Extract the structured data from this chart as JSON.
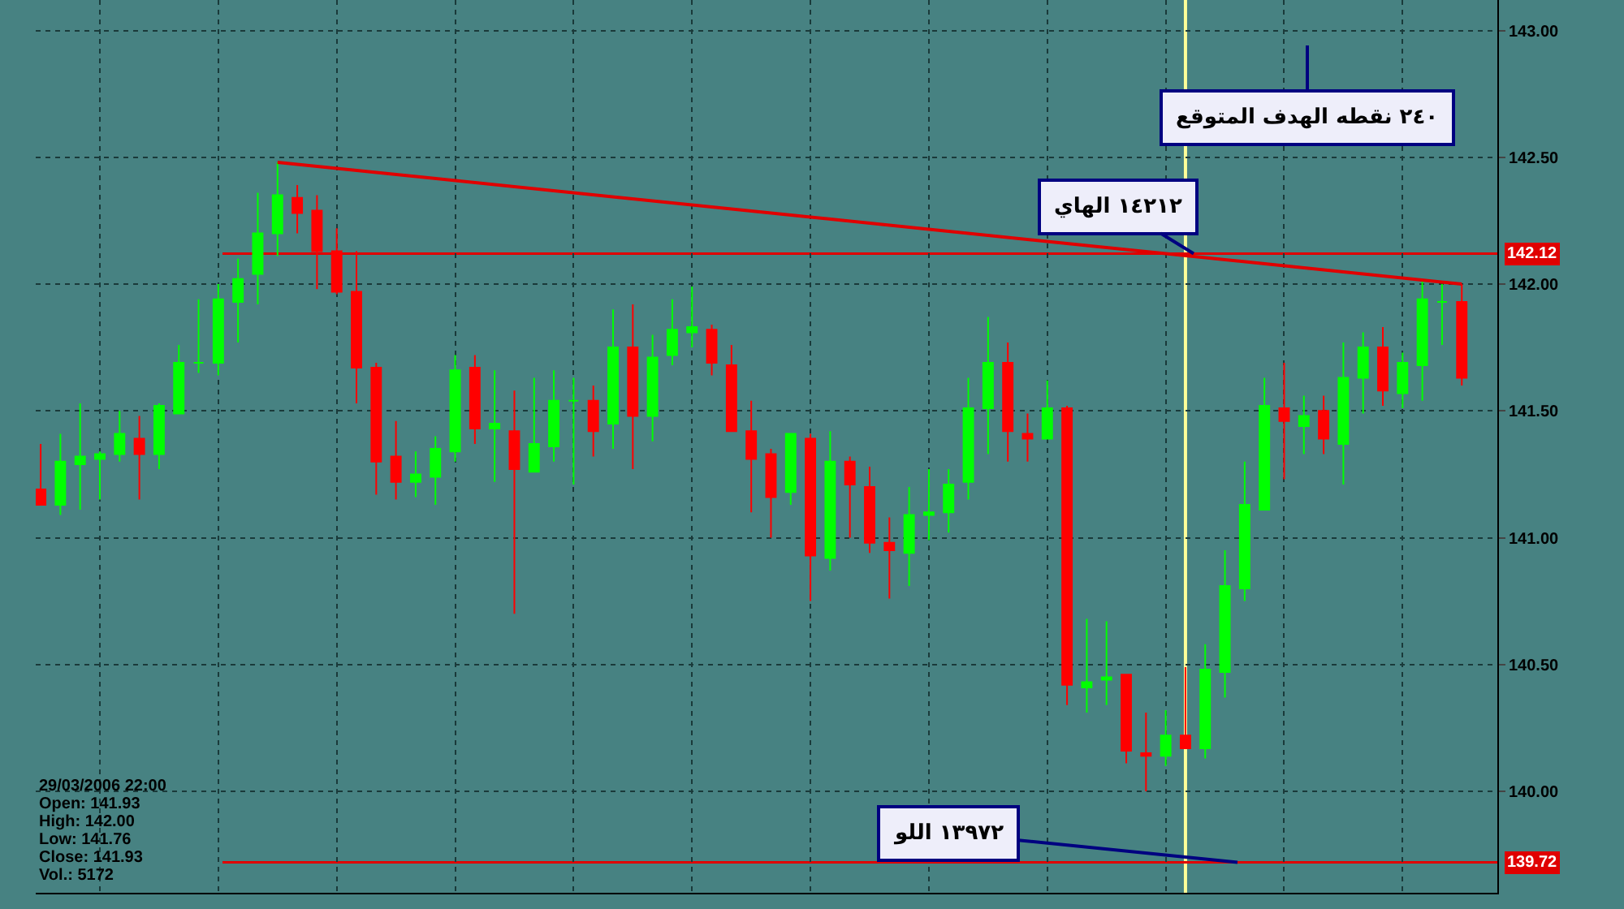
{
  "chart_data": {
    "type": "candlestick",
    "categories": [
      null,
      null,
      null,
      null,
      null,
      null,
      null,
      null,
      null,
      null,
      null,
      null,
      null,
      null,
      null,
      null,
      null,
      null,
      null,
      null,
      null,
      null,
      null,
      null,
      null,
      null,
      null,
      null,
      null,
      null,
      null,
      null,
      null,
      null,
      null,
      null,
      null,
      null,
      null,
      null,
      null,
      null,
      null,
      null,
      null,
      null,
      null,
      null,
      null,
      null,
      null,
      null,
      null,
      null,
      null,
      null,
      null,
      null,
      null,
      null,
      null,
      null,
      null,
      null,
      null,
      null,
      null,
      null,
      null,
      null,
      null,
      null,
      null
    ],
    "ohlc": [
      [
        141.19,
        141.37,
        141.13,
        141.13
      ],
      [
        141.13,
        141.41,
        141.09,
        141.3
      ],
      [
        141.29,
        141.53,
        141.11,
        141.32
      ],
      [
        141.31,
        141.34,
        141.15,
        141.33
      ],
      [
        141.33,
        141.5,
        141.3,
        141.41
      ],
      [
        141.39,
        141.48,
        141.15,
        141.33
      ],
      [
        141.33,
        141.53,
        141.27,
        141.52
      ],
      [
        141.49,
        141.76,
        141.49,
        141.69
      ],
      [
        141.69,
        141.94,
        141.65,
        141.69
      ],
      [
        141.69,
        142.0,
        141.64,
        141.94
      ],
      [
        141.93,
        142.1,
        141.77,
        142.02
      ],
      [
        142.04,
        142.36,
        141.92,
        142.2
      ],
      [
        142.2,
        142.48,
        142.11,
        142.35
      ],
      [
        142.34,
        142.39,
        142.2,
        142.28
      ],
      [
        142.29,
        142.35,
        141.98,
        142.13
      ],
      [
        142.13,
        142.22,
        141.96,
        141.97
      ],
      [
        141.97,
        142.13,
        141.53,
        141.67
      ],
      [
        141.67,
        141.69,
        141.17,
        141.3
      ],
      [
        141.32,
        141.46,
        141.15,
        141.22
      ],
      [
        141.22,
        141.34,
        141.16,
        141.25
      ],
      [
        141.24,
        141.4,
        141.13,
        141.35
      ],
      [
        141.34,
        141.72,
        141.3,
        141.66
      ],
      [
        141.67,
        141.72,
        141.37,
        141.43
      ],
      [
        141.43,
        141.66,
        141.22,
        141.45
      ],
      [
        141.42,
        141.58,
        140.7,
        141.27
      ],
      [
        141.26,
        141.63,
        141.26,
        141.37
      ],
      [
        141.36,
        141.66,
        141.3,
        141.54
      ],
      [
        141.54,
        141.63,
        141.21,
        141.54
      ],
      [
        141.54,
        141.6,
        141.32,
        141.42
      ],
      [
        141.45,
        141.9,
        141.35,
        141.75
      ],
      [
        141.75,
        141.92,
        141.27,
        141.48
      ],
      [
        141.48,
        141.8,
        141.38,
        141.71
      ],
      [
        141.72,
        141.94,
        141.68,
        141.82
      ],
      [
        141.81,
        141.99,
        141.75,
        141.83
      ],
      [
        141.82,
        141.84,
        141.64,
        141.69
      ],
      [
        141.68,
        141.76,
        141.42,
        141.42
      ],
      [
        141.42,
        141.54,
        141.1,
        141.31
      ],
      [
        141.33,
        141.35,
        141.0,
        141.16
      ],
      [
        141.18,
        141.41,
        141.13,
        141.41
      ],
      [
        141.39,
        141.41,
        140.75,
        140.93
      ],
      [
        140.92,
        141.42,
        140.87,
        141.3
      ],
      [
        141.3,
        141.32,
        141.0,
        141.21
      ],
      [
        141.2,
        141.28,
        140.94,
        140.98
      ],
      [
        140.98,
        141.08,
        140.76,
        140.95
      ],
      [
        140.94,
        141.2,
        140.81,
        141.09
      ],
      [
        141.09,
        141.27,
        140.99,
        141.1
      ],
      [
        141.1,
        141.27,
        141.02,
        141.21
      ],
      [
        141.22,
        141.63,
        141.15,
        141.51
      ],
      [
        141.51,
        141.87,
        141.33,
        141.69
      ],
      [
        141.69,
        141.77,
        141.3,
        141.42
      ],
      [
        141.41,
        141.49,
        141.3,
        141.39
      ],
      [
        141.39,
        141.62,
        141.39,
        141.51
      ],
      [
        141.51,
        141.52,
        140.34,
        140.42
      ],
      [
        140.41,
        140.68,
        140.31,
        140.43
      ],
      [
        140.44,
        140.67,
        140.34,
        140.45
      ],
      [
        140.46,
        140.46,
        140.11,
        140.16
      ],
      [
        140.15,
        140.31,
        140.0,
        140.14
      ],
      [
        140.14,
        140.32,
        140.1,
        140.22
      ],
      [
        140.22,
        140.49,
        140.17,
        140.17
      ],
      [
        140.17,
        140.58,
        140.13,
        140.48
      ],
      [
        140.47,
        140.95,
        140.37,
        140.81
      ],
      [
        140.8,
        141.3,
        140.75,
        141.13
      ],
      [
        141.11,
        141.63,
        141.11,
        141.52
      ],
      [
        141.51,
        141.69,
        141.23,
        141.46
      ],
      [
        141.44,
        141.56,
        141.33,
        141.48
      ],
      [
        141.5,
        141.56,
        141.33,
        141.39
      ],
      [
        141.37,
        141.77,
        141.21,
        141.63
      ],
      [
        141.63,
        141.81,
        141.49,
        141.75
      ],
      [
        141.75,
        141.83,
        141.52,
        141.58
      ],
      [
        141.57,
        141.73,
        141.51,
        141.69
      ],
      [
        141.68,
        142.01,
        141.54,
        141.94
      ],
      [
        141.93,
        142.0,
        141.76,
        141.93
      ],
      [
        141.93,
        142.0,
        141.6,
        141.63
      ]
    ],
    "colors": [
      "#ff0000",
      "#00ff00",
      "#00ff00",
      "#00ff00",
      "#00ff00",
      "#ff0000",
      "#00ff00",
      "#00ff00",
      "#00ff00",
      "#00ff00",
      "#00ff00",
      "#00ff00",
      "#00ff00",
      "#ff0000",
      "#ff0000",
      "#ff0000",
      "#ff0000",
      "#ff0000",
      "#ff0000",
      "#00ff00",
      "#00ff00",
      "#00ff00",
      "#ff0000",
      "#00ff00",
      "#ff0000",
      "#00ff00",
      "#00ff00",
      "#00ff00",
      "#ff0000",
      "#00ff00",
      "#ff0000",
      "#00ff00",
      "#00ff00",
      "#00ff00",
      "#ff0000",
      "#ff0000",
      "#ff0000",
      "#ff0000",
      "#00ff00",
      "#ff0000",
      "#00ff00",
      "#ff0000",
      "#ff0000",
      "#ff0000",
      "#00ff00",
      "#00ff00",
      "#00ff00",
      "#00ff00",
      "#00ff00",
      "#ff0000",
      "#ff0000",
      "#00ff00",
      "#ff0000",
      "#00ff00",
      "#00ff00",
      "#ff0000",
      "#ff0000",
      "#00ff00",
      "#ff0000",
      "#00ff00",
      "#00ff00",
      "#00ff00",
      "#00ff00",
      "#ff0000",
      "#00ff00",
      "#ff0000",
      "#00ff00",
      "#00ff00",
      "#ff0000",
      "#00ff00",
      "#00ff00",
      "#00ff00",
      "#ff0000"
    ],
    "series": [
      {
        "type": "line",
        "color": "#e00000",
        "values": [
          null,
          null,
          null,
          null,
          null,
          null,
          null,
          null,
          null,
          null,
          null,
          null,
          142.48,
          null,
          null,
          null,
          null,
          null,
          null,
          null,
          null,
          null,
          null,
          null,
          null,
          null,
          null,
          null,
          null,
          null,
          null,
          null,
          null,
          null,
          null,
          null,
          null,
          null,
          null,
          null,
          null,
          null,
          null,
          null,
          null,
          null,
          null,
          null,
          null,
          null,
          null,
          null,
          null,
          null,
          null,
          null,
          null,
          null,
          null,
          null,
          null,
          null,
          null,
          null,
          null,
          null,
          null,
          null,
          null,
          null,
          null,
          null,
          142.0
        ]
      }
    ],
    "ylim": [
      139.6,
      143.12
    ],
    "yticks": [
      {
        "value": 140,
        "label": "140.00"
      },
      {
        "value": 140.5,
        "label": "140.50"
      },
      {
        "value": 141,
        "label": "141.00"
      },
      {
        "value": 141.5,
        "label": "141.50"
      },
      {
        "value": 142,
        "label": "142.00"
      },
      {
        "value": 142.5,
        "label": "142.50"
      },
      {
        "value": 143,
        "label": "143.00"
      }
    ],
    "ref_lines": [
      {
        "axis": "y",
        "value": 142.12,
        "label": "142.12",
        "color": "#e00000"
      },
      {
        "axis": "y",
        "value": 139.72,
        "label": "139.72",
        "color": "#e00000"
      }
    ],
    "annotations": [
      "٢٤٠ نقطه الهدف المتوقع",
      {
        "text": "١٤٢١٢ الهاي",
        "y": 142.12
      },
      {
        "text": "١٣٩٧٢ اللو",
        "y": 139.72
      },
      "29/03/2006 22:00",
      "Open: 141.93",
      "High: 142.00",
      "Low: 141.76",
      "Close: 141.93",
      "Vol.: 5172"
    ],
    "grid": true,
    "tick_labels": "y"
  }
}
